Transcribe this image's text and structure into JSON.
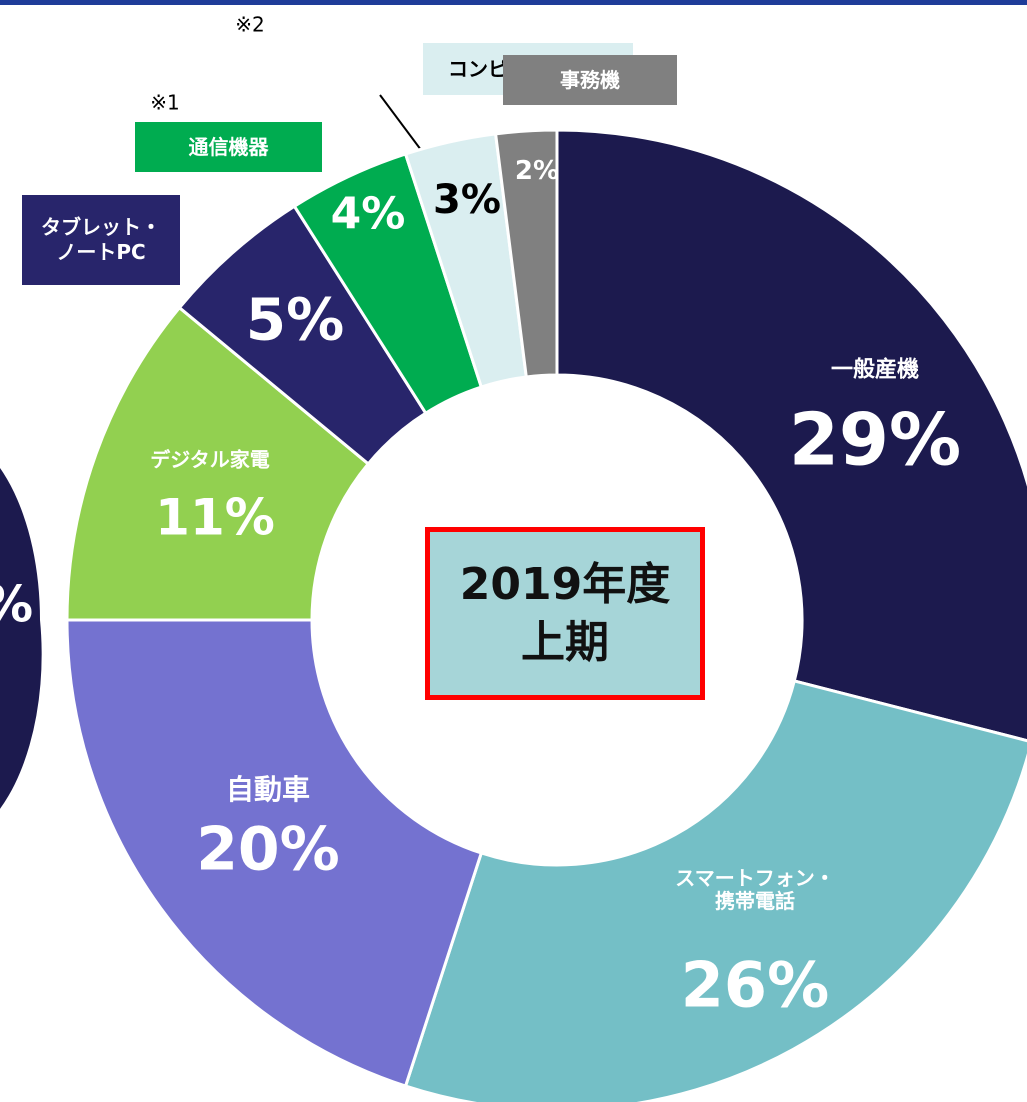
{
  "chart_data": {
    "type": "donut",
    "categories": [
      "一般産機",
      "スマートフォン・\n携帯電話",
      "自動車",
      "デジタル家電",
      "タブレット・\nノートPC",
      "通信機器",
      "コンピュータ関連",
      "事務機"
    ],
    "values": [
      29,
      26,
      20,
      11,
      5,
      4,
      3,
      2
    ],
    "value_labels": [
      "29%",
      "26%",
      "20%",
      "11%",
      "5%",
      "4%",
      "3%",
      "2%"
    ],
    "colors": [
      "#1c1a4e",
      "#74bfc6",
      "#7472d0",
      "#92d050",
      "#28256b",
      "#00ac50",
      "#daeef0",
      "#808080"
    ],
    "center_label": "2019年度\n上期",
    "notes": {
      "5": "※1",
      "6": "※2"
    },
    "left_fragment": "%"
  }
}
